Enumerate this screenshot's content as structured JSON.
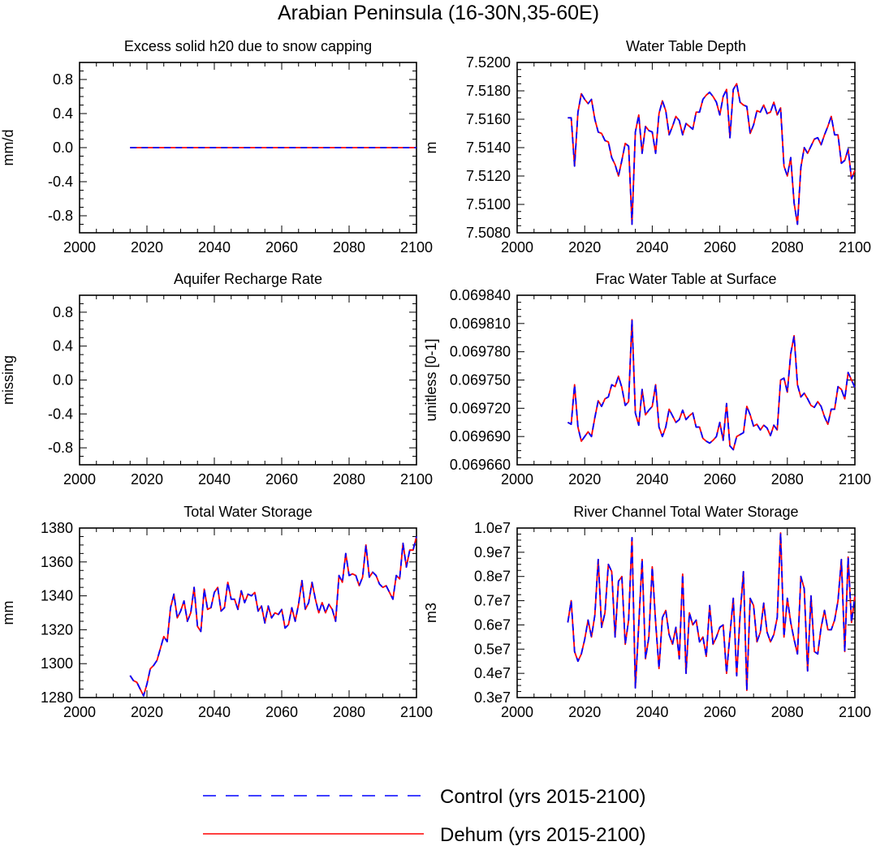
{
  "figure": {
    "title": "Arabian Peninsula (16-30N,35-60E)",
    "colors": {
      "control": "#0000ff",
      "dehum": "#ff0000",
      "axis": "#000000"
    },
    "legend": {
      "position": "bottom-center",
      "entries": [
        {
          "label": "Control (yrs 2015-2100)",
          "color": "#0000ff",
          "style": "dashed"
        },
        {
          "label": "Dehum (yrs 2015-2100)",
          "color": "#ff0000",
          "style": "solid"
        }
      ]
    }
  },
  "chart_data": [
    {
      "type": "line",
      "title": "Excess solid h20 due to snow capping",
      "ylabel": "mm/d",
      "xlim": [
        2000,
        2100
      ],
      "ylim": [
        -1,
        1
      ],
      "xticks": [
        2000,
        2020,
        2040,
        2060,
        2080,
        2100
      ],
      "yticks": [
        -0.8,
        -0.4,
        0.0,
        0.4,
        0.8
      ],
      "yticklabels": [
        "-0.8",
        "-0.4",
        "0.0",
        "0.4",
        "0.8"
      ],
      "x_start": 2015,
      "x_end": 2100,
      "series": [
        {
          "values": [
            0,
            0
          ]
        },
        {
          "values": [
            0,
            0
          ]
        }
      ],
      "series_x": [
        2015,
        2100
      ]
    },
    {
      "type": "line",
      "title": "Water Table Depth",
      "ylabel": "m",
      "xlim": [
        2000,
        2100
      ],
      "ylim": [
        7.508,
        7.52
      ],
      "xticks": [
        2000,
        2020,
        2040,
        2060,
        2080,
        2100
      ],
      "yticks": [
        7.508,
        7.51,
        7.512,
        7.514,
        7.516,
        7.518,
        7.52
      ],
      "yticklabels": [
        "7.5080",
        "7.5100",
        "7.5120",
        "7.5140",
        "7.5160",
        "7.5180",
        "7.5200"
      ],
      "x_start": 2015,
      "series": [
        {
          "values": [
            7.5161,
            7.5161,
            7.5127,
            7.5165,
            7.5178,
            7.5174,
            7.5171,
            7.5174,
            7.516,
            7.5151,
            7.515,
            7.5145,
            7.5144,
            7.5133,
            7.5128,
            7.512,
            7.5131,
            7.5143,
            7.5141,
            7.5086,
            7.5151,
            7.5163,
            7.5136,
            7.5155,
            7.5152,
            7.5151,
            7.5136,
            7.5164,
            7.5173,
            7.5166,
            7.5149,
            7.5155,
            7.5162,
            7.5159,
            7.5149,
            7.5157,
            7.5155,
            7.5153,
            7.5165,
            7.5165,
            7.5174,
            7.5177,
            7.5179,
            7.5176,
            7.5172,
            7.5163,
            7.5176,
            7.5181,
            7.5147,
            7.5181,
            7.5185,
            7.5172,
            7.517,
            7.5169,
            7.515,
            7.5156,
            7.5166,
            7.5165,
            7.517,
            7.5164,
            7.5165,
            7.5172,
            7.5163,
            7.5168,
            7.5127,
            7.512,
            7.5133,
            7.5101,
            7.5086,
            7.5126,
            7.514,
            7.5136,
            7.5141,
            7.5146,
            7.5147,
            7.5142,
            7.5149,
            7.5155,
            7.5162,
            7.5149,
            7.5149,
            7.5129,
            7.5131,
            7.5139,
            7.5118,
            7.5124
          ]
        },
        {
          "values": [
            7.5161,
            7.5161,
            7.5127,
            7.5165,
            7.5178,
            7.5174,
            7.5171,
            7.5174,
            7.516,
            7.5151,
            7.515,
            7.5145,
            7.5144,
            7.5133,
            7.5128,
            7.512,
            7.5131,
            7.5143,
            7.5141,
            7.5086,
            7.5151,
            7.5163,
            7.5136,
            7.5155,
            7.5152,
            7.5151,
            7.5136,
            7.5164,
            7.5173,
            7.5166,
            7.5149,
            7.5155,
            7.5162,
            7.5159,
            7.5149,
            7.5157,
            7.5155,
            7.5153,
            7.5165,
            7.5165,
            7.5174,
            7.5177,
            7.5179,
            7.5176,
            7.5172,
            7.5163,
            7.5176,
            7.5181,
            7.5147,
            7.5181,
            7.5185,
            7.5172,
            7.517,
            7.5169,
            7.515,
            7.5156,
            7.5166,
            7.5165,
            7.517,
            7.5164,
            7.5165,
            7.5172,
            7.5163,
            7.5168,
            7.5127,
            7.512,
            7.5133,
            7.5101,
            7.5086,
            7.5126,
            7.514,
            7.5136,
            7.5141,
            7.5146,
            7.5147,
            7.5142,
            7.5149,
            7.5155,
            7.5162,
            7.5149,
            7.5149,
            7.5129,
            7.5131,
            7.5139,
            7.5118,
            7.5124
          ]
        }
      ]
    },
    {
      "type": "line",
      "title": "Aquifer Recharge Rate",
      "ylabel": "missing",
      "xlim": [
        2000,
        2100
      ],
      "ylim": [
        -1,
        1
      ],
      "xticks": [
        2000,
        2020,
        2040,
        2060,
        2080,
        2100
      ],
      "yticks": [
        -0.8,
        -0.4,
        0.0,
        0.4,
        0.8
      ],
      "yticklabels": [
        "-0.8",
        "-0.4",
        "0.0",
        "0.4",
        "0.8"
      ],
      "series": []
    },
    {
      "type": "line",
      "title": "Frac Water Table at Surface",
      "ylabel": "unitless [0-1]",
      "xlim": [
        2000,
        2100
      ],
      "ylim": [
        0.06966,
        0.06984
      ],
      "xticks": [
        2000,
        2020,
        2040,
        2060,
        2080,
        2100
      ],
      "yticks": [
        0.06966,
        0.06969,
        0.06972,
        0.06975,
        0.06978,
        0.06981,
        0.06984
      ],
      "yticklabels": [
        "0.069660",
        "0.069690",
        "0.069720",
        "0.069750",
        "0.069780",
        "0.069810",
        "0.069840"
      ],
      "x_start": 2015,
      "series": [
        {
          "values": [
            0.069705,
            0.069703,
            0.069745,
            0.0697,
            0.069685,
            0.06969,
            0.069695,
            0.06969,
            0.06971,
            0.069728,
            0.069722,
            0.06973,
            0.069732,
            0.069745,
            0.069743,
            0.069754,
            0.069742,
            0.069723,
            0.069727,
            0.069814,
            0.069715,
            0.069702,
            0.06974,
            0.069713,
            0.069718,
            0.069722,
            0.069745,
            0.0697,
            0.06969,
            0.0697,
            0.069719,
            0.069712,
            0.069705,
            0.069708,
            0.069718,
            0.069708,
            0.069712,
            0.069715,
            0.0697,
            0.0697,
            0.069688,
            0.069685,
            0.069683,
            0.069686,
            0.06969,
            0.069705,
            0.069686,
            0.069725,
            0.06968,
            0.069676,
            0.06969,
            0.069692,
            0.069694,
            0.069722,
            0.069713,
            0.069701,
            0.069703,
            0.069697,
            0.069702,
            0.069699,
            0.069691,
            0.069702,
            0.069697,
            0.06975,
            0.069752,
            0.069737,
            0.069778,
            0.069797,
            0.069745,
            0.069732,
            0.069736,
            0.06973,
            0.069723,
            0.069721,
            0.069727,
            0.069722,
            0.069711,
            0.069703,
            0.069719,
            0.069719,
            0.069743,
            0.06974,
            0.06973,
            0.069758,
            0.06975,
            0.069742
          ]
        },
        {
          "values": [
            0.069705,
            0.069703,
            0.069745,
            0.0697,
            0.069685,
            0.06969,
            0.069695,
            0.06969,
            0.06971,
            0.069728,
            0.069722,
            0.06973,
            0.069732,
            0.069745,
            0.069743,
            0.069754,
            0.069742,
            0.069723,
            0.069727,
            0.069814,
            0.069715,
            0.069702,
            0.06974,
            0.069713,
            0.069718,
            0.069722,
            0.069745,
            0.0697,
            0.06969,
            0.0697,
            0.069719,
            0.069712,
            0.069705,
            0.069708,
            0.069718,
            0.069708,
            0.069712,
            0.069715,
            0.0697,
            0.0697,
            0.069688,
            0.069685,
            0.069683,
            0.069686,
            0.06969,
            0.069705,
            0.069686,
            0.069725,
            0.06968,
            0.069676,
            0.06969,
            0.069692,
            0.069694,
            0.069722,
            0.069713,
            0.069701,
            0.069703,
            0.069697,
            0.069702,
            0.069699,
            0.069691,
            0.069702,
            0.069697,
            0.06975,
            0.069752,
            0.069737,
            0.069778,
            0.069797,
            0.069745,
            0.069732,
            0.069736,
            0.06973,
            0.069723,
            0.069721,
            0.069727,
            0.069722,
            0.069711,
            0.069703,
            0.069719,
            0.069719,
            0.069743,
            0.06974,
            0.06973,
            0.069758,
            0.06975,
            0.069742
          ]
        }
      ]
    },
    {
      "type": "line",
      "title": "Total Water Storage",
      "ylabel": "mm",
      "xlim": [
        2000,
        2100
      ],
      "ylim": [
        1280,
        1380
      ],
      "xticks": [
        2000,
        2020,
        2040,
        2060,
        2080,
        2100
      ],
      "yticks": [
        1280,
        1300,
        1320,
        1340,
        1360,
        1380
      ],
      "yticklabels": [
        "1280",
        "1300",
        "1320",
        "1340",
        "1360",
        "1380"
      ],
      "x_start": 2015,
      "series": [
        {
          "values": [
            1293,
            1290,
            1289,
            1285,
            1281,
            1288,
            1297,
            1299,
            1302,
            1309,
            1316,
            1313,
            1333,
            1341,
            1327,
            1331,
            1337,
            1325,
            1330,
            1345,
            1322,
            1319,
            1344,
            1332,
            1333,
            1342,
            1345,
            1331,
            1333,
            1348,
            1338,
            1338,
            1332,
            1343,
            1336,
            1341,
            1340,
            1342,
            1331,
            1334,
            1324,
            1334,
            1327,
            1330,
            1329,
            1332,
            1321,
            1323,
            1333,
            1325,
            1335,
            1349,
            1332,
            1336,
            1348,
            1338,
            1330,
            1336,
            1330,
            1335,
            1332,
            1325,
            1352,
            1348,
            1365,
            1352,
            1353,
            1352,
            1346,
            1351,
            1370,
            1351,
            1354,
            1352,
            1347,
            1345,
            1346,
            1342,
            1338,
            1352,
            1350,
            1371,
            1357,
            1367,
            1367,
            1375
          ]
        },
        {
          "values": [
            1293,
            1290,
            1289,
            1285,
            1281,
            1288,
            1297,
            1299,
            1302,
            1309,
            1316,
            1313,
            1333,
            1341,
            1327,
            1331,
            1337,
            1325,
            1330,
            1345,
            1322,
            1319,
            1344,
            1332,
            1333,
            1342,
            1345,
            1331,
            1333,
            1348,
            1338,
            1338,
            1332,
            1343,
            1336,
            1341,
            1340,
            1342,
            1331,
            1334,
            1324,
            1334,
            1327,
            1330,
            1329,
            1332,
            1321,
            1323,
            1333,
            1325,
            1335,
            1349,
            1332,
            1336,
            1348,
            1338,
            1330,
            1336,
            1330,
            1335,
            1332,
            1325,
            1352,
            1348,
            1365,
            1352,
            1353,
            1352,
            1346,
            1351,
            1370,
            1351,
            1354,
            1352,
            1347,
            1345,
            1346,
            1342,
            1338,
            1352,
            1350,
            1371,
            1357,
            1367,
            1367,
            1375
          ]
        }
      ]
    },
    {
      "type": "line",
      "title": "River Channel Total Water Storage",
      "ylabel": "m3",
      "xlim": [
        2000,
        2100
      ],
      "ylim": [
        3000000,
        10000000
      ],
      "xticks": [
        2000,
        2020,
        2040,
        2060,
        2080,
        2100
      ],
      "yticks": [
        3000000,
        4000000,
        5000000,
        6000000,
        7000000,
        8000000,
        9000000,
        10000000
      ],
      "yticklabels": [
        "0.3e7",
        "0.4e7",
        "0.5e7",
        "0.6e7",
        "0.7e7",
        "0.8e7",
        "0.9e7",
        "1.0e7"
      ],
      "x_start": 2015,
      "series": [
        {
          "values": [
            6100000,
            7000000,
            4900000,
            4500000,
            4800000,
            5400000,
            6200000,
            5500000,
            6400000,
            8700000,
            5900000,
            6500000,
            8500000,
            8200000,
            5500000,
            7800000,
            8000000,
            5200000,
            6200000,
            9600000,
            3400000,
            6000000,
            8700000,
            4600000,
            5500000,
            8400000,
            6100000,
            4200000,
            6300000,
            6600000,
            5600000,
            5200000,
            5900000,
            4600000,
            8100000,
            4000000,
            6500000,
            6000000,
            6200000,
            5300000,
            5500000,
            4700000,
            6800000,
            5200000,
            5500000,
            5900000,
            6000000,
            4000000,
            5600000,
            7100000,
            3900000,
            6400000,
            8200000,
            3300000,
            7100000,
            6800000,
            5300000,
            5700000,
            6900000,
            5700000,
            5300000,
            5600000,
            6300000,
            9800000,
            5500000,
            7100000,
            6100000,
            5400000,
            4800000,
            8000000,
            7500000,
            4100000,
            7200000,
            4900000,
            4800000,
            5900000,
            6600000,
            5800000,
            5800000,
            6200000,
            7000000,
            8700000,
            4900000,
            8800000,
            6100000,
            7200000
          ]
        },
        {
          "values": [
            6100000,
            7000000,
            4900000,
            4500000,
            4800000,
            5400000,
            6200000,
            5500000,
            6400000,
            8700000,
            5900000,
            6500000,
            8500000,
            8200000,
            5500000,
            7800000,
            8000000,
            5200000,
            6200000,
            9600000,
            3400000,
            6000000,
            8700000,
            4600000,
            5500000,
            8400000,
            6100000,
            4200000,
            6300000,
            6600000,
            5600000,
            5200000,
            5900000,
            4600000,
            8100000,
            4000000,
            6500000,
            6000000,
            6200000,
            5300000,
            5500000,
            4700000,
            6800000,
            5200000,
            5500000,
            5900000,
            6000000,
            4000000,
            5600000,
            7100000,
            3900000,
            6400000,
            8200000,
            3300000,
            7100000,
            6800000,
            5300000,
            5700000,
            6900000,
            5700000,
            5300000,
            5600000,
            6300000,
            9800000,
            5500000,
            7100000,
            6100000,
            5400000,
            4800000,
            8000000,
            7500000,
            4100000,
            7200000,
            4900000,
            4800000,
            5900000,
            6600000,
            5800000,
            5800000,
            6200000,
            7000000,
            8700000,
            4900000,
            8800000,
            6100000,
            7200000
          ]
        }
      ]
    }
  ]
}
